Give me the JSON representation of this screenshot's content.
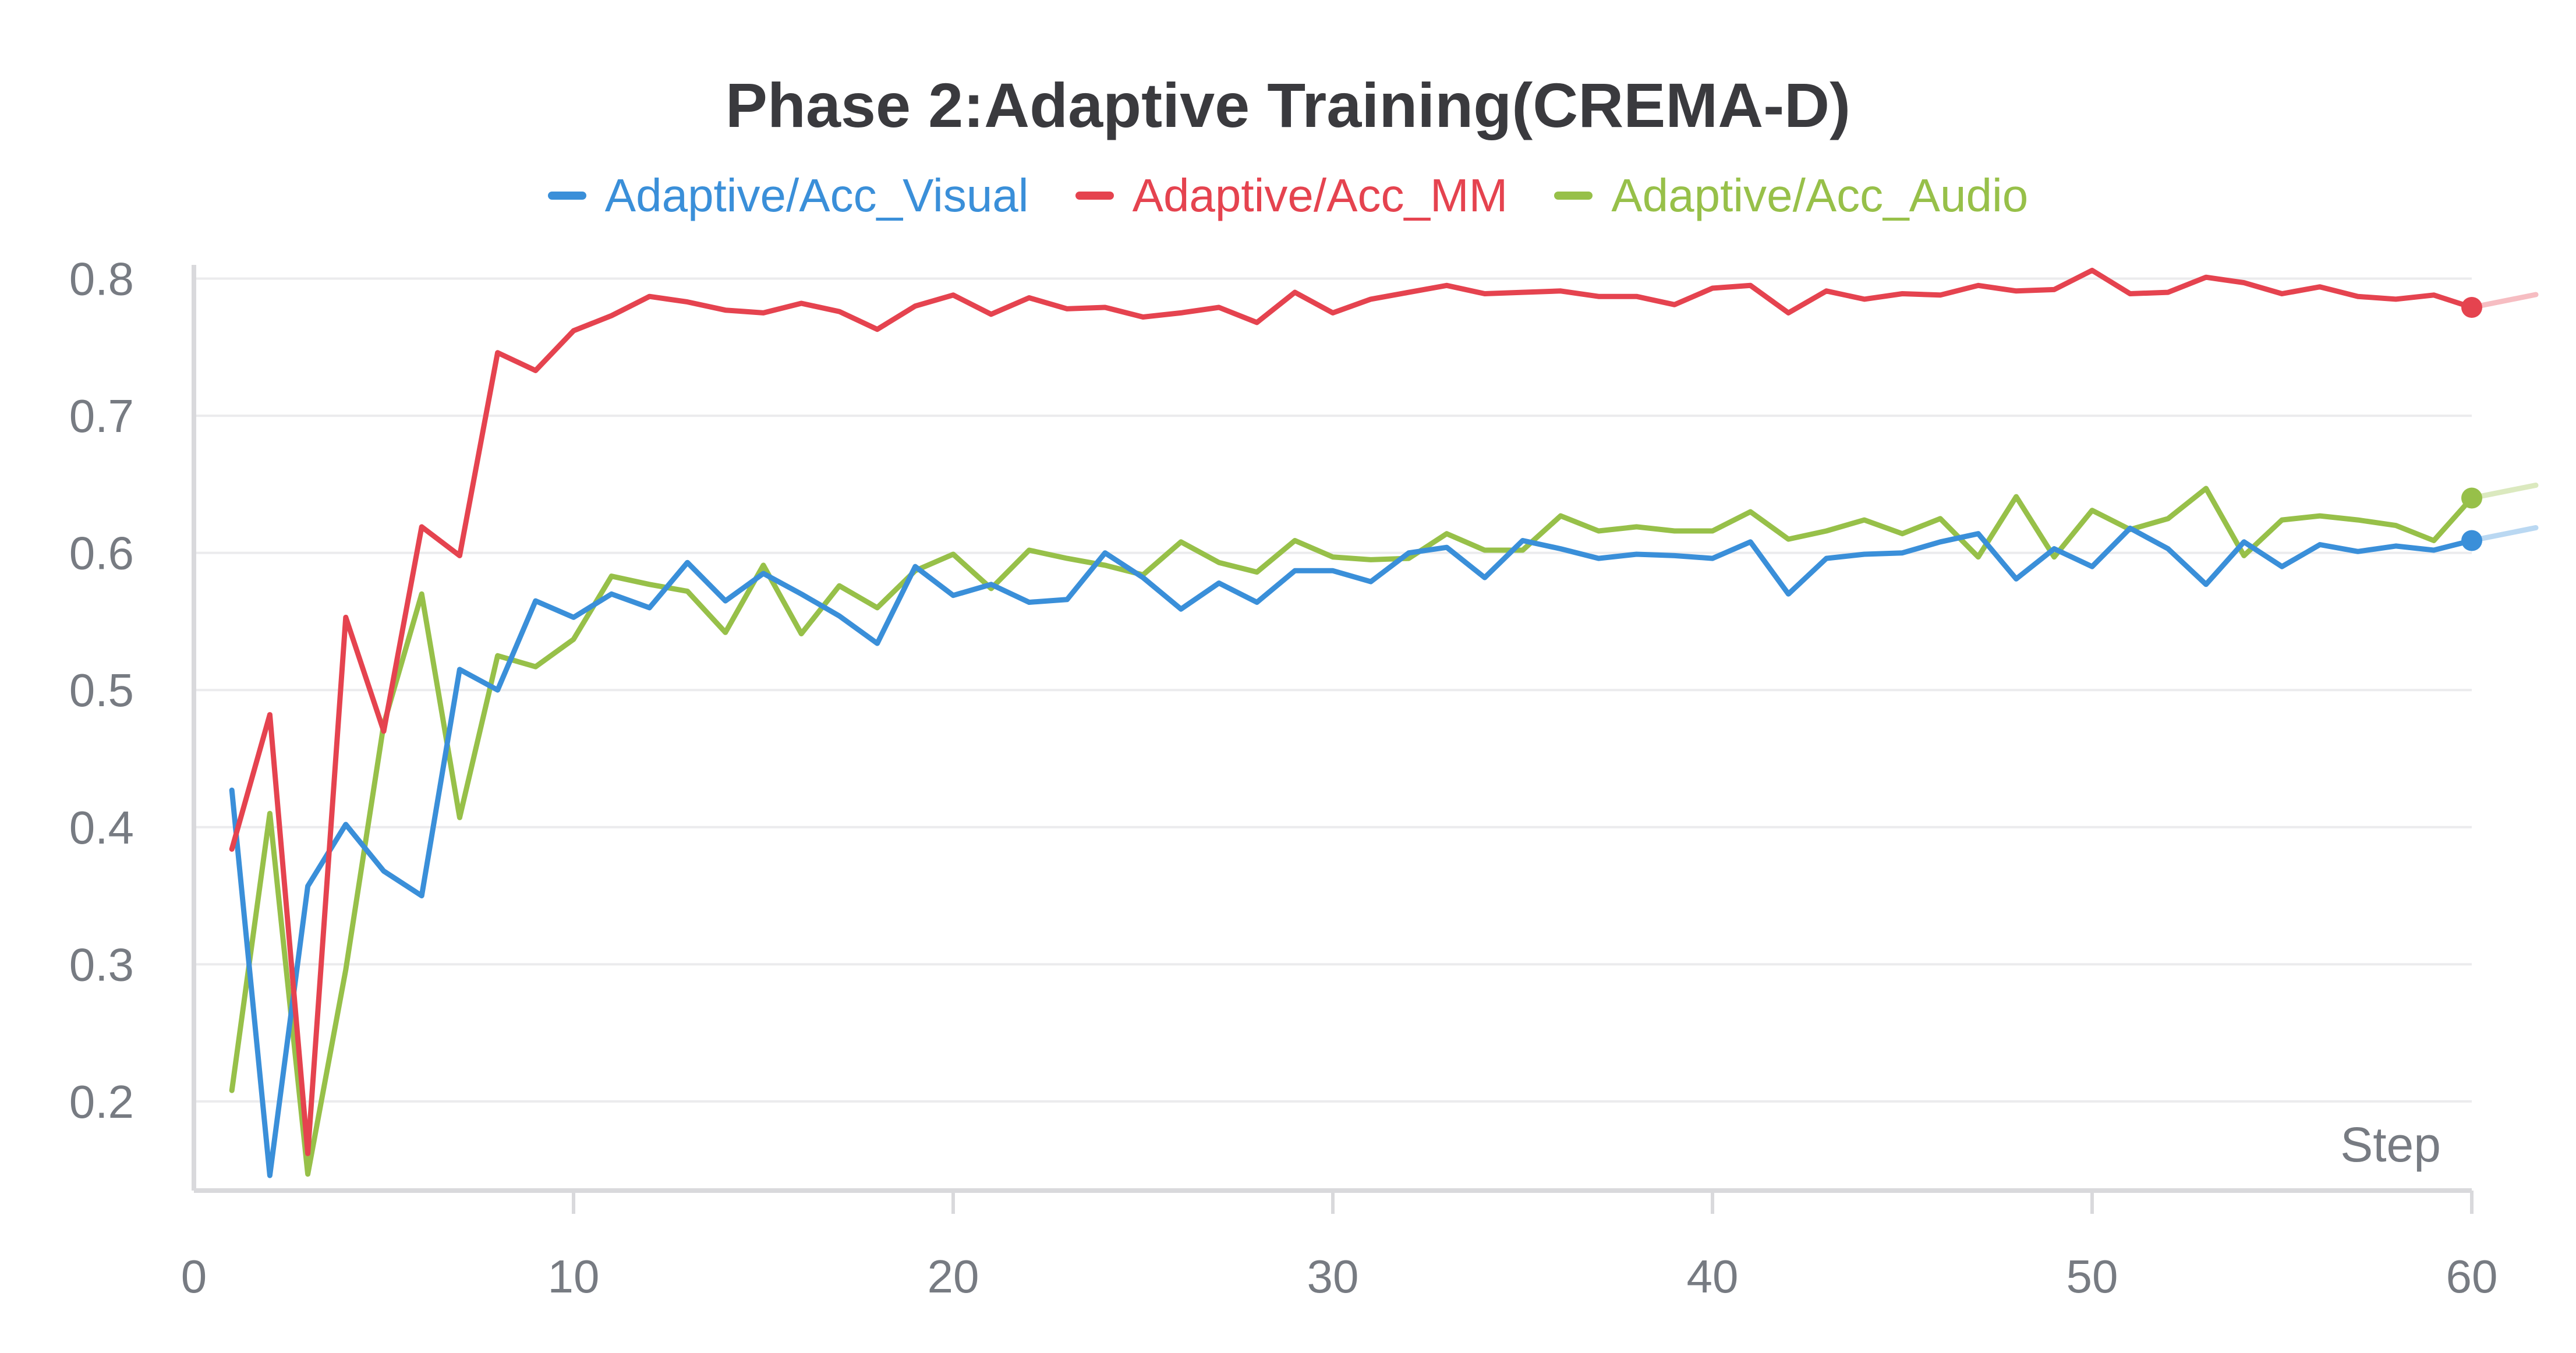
{
  "chart_data": {
    "type": "line",
    "title": "Phase 2:Adaptive Training(CREMA-D)",
    "xlabel": "Step",
    "ylabel": "",
    "xlim": [
      0,
      60
    ],
    "ylim": [
      0.135,
      0.81
    ],
    "xticks": [
      0,
      10,
      20,
      30,
      40,
      50,
      60
    ],
    "yticks": [
      0.2,
      0.3,
      0.4,
      0.5,
      0.6,
      0.7,
      0.8
    ],
    "xtick_labels": [
      "0",
      "10",
      "20",
      "30",
      "40",
      "50",
      "60"
    ],
    "ytick_labels": [
      "0.2",
      "0.3",
      "0.4",
      "0.5",
      "0.6",
      "0.7",
      "0.8"
    ],
    "x": [
      1,
      2,
      3,
      4,
      5,
      6,
      7,
      8,
      9,
      10,
      11,
      12,
      13,
      14,
      15,
      16,
      17,
      18,
      19,
      20,
      21,
      22,
      23,
      24,
      25,
      26,
      27,
      28,
      29,
      30,
      31,
      32,
      33,
      34,
      35,
      36,
      37,
      38,
      39,
      40,
      41,
      42,
      43,
      44,
      45,
      46,
      47,
      48,
      49,
      50,
      51,
      52,
      53,
      54,
      55,
      56,
      57,
      58,
      59,
      60
    ],
    "series": [
      {
        "name": "Adaptive/Acc_Visual",
        "color": "#3a8fd9",
        "values": [
          0.427,
          0.146,
          0.357,
          0.402,
          0.368,
          0.35,
          0.515,
          0.5,
          0.565,
          0.553,
          0.57,
          0.56,
          0.593,
          0.565,
          0.585,
          0.57,
          0.554,
          0.534,
          0.59,
          0.569,
          0.577,
          0.564,
          0.566,
          0.6,
          0.582,
          0.559,
          0.578,
          0.564,
          0.587,
          0.587,
          0.579,
          0.6,
          0.604,
          0.582,
          0.609,
          0.603,
          0.596,
          0.599,
          0.598,
          0.596,
          0.608,
          0.57,
          0.596,
          0.599,
          0.6,
          0.608,
          0.614,
          0.581,
          0.603,
          0.59,
          0.618,
          0.603,
          0.577,
          0.608,
          0.59,
          0.606,
          0.601,
          0.605,
          0.602,
          0.609
        ]
      },
      {
        "name": "Adaptive/Acc_MM",
        "color": "#e5434f",
        "values": [
          0.384,
          0.482,
          0.162,
          0.553,
          0.47,
          0.619,
          0.598,
          0.746,
          0.733,
          0.762,
          0.773,
          0.787,
          0.783,
          0.777,
          0.775,
          0.782,
          0.776,
          0.763,
          0.78,
          0.788,
          0.774,
          0.786,
          0.778,
          0.779,
          0.772,
          0.775,
          0.779,
          0.768,
          0.79,
          0.775,
          0.785,
          0.79,
          0.795,
          0.789,
          0.79,
          0.791,
          0.787,
          0.787,
          0.781,
          0.793,
          0.795,
          0.775,
          0.791,
          0.785,
          0.789,
          0.788,
          0.795,
          0.791,
          0.792,
          0.806,
          0.789,
          0.79,
          0.801,
          0.797,
          0.789,
          0.794,
          0.787,
          0.785,
          0.788,
          0.779
        ]
      },
      {
        "name": "Adaptive/Acc_Audio",
        "color": "#97c049",
        "values": [
          0.208,
          0.41,
          0.147,
          0.296,
          0.475,
          0.57,
          0.407,
          0.525,
          0.517,
          0.537,
          0.583,
          0.577,
          0.572,
          0.542,
          0.591,
          0.541,
          0.576,
          0.56,
          0.587,
          0.599,
          0.574,
          0.602,
          0.596,
          0.591,
          0.584,
          0.608,
          0.593,
          0.586,
          0.609,
          0.597,
          0.595,
          0.596,
          0.614,
          0.602,
          0.602,
          0.627,
          0.616,
          0.619,
          0.616,
          0.616,
          0.63,
          0.61,
          0.616,
          0.624,
          0.614,
          0.625,
          0.597,
          0.641,
          0.597,
          0.631,
          0.617,
          0.625,
          0.647,
          0.598,
          0.624,
          0.627,
          0.624,
          0.62,
          0.609,
          0.64
        ]
      }
    ],
    "legend_position": "top-center"
  }
}
